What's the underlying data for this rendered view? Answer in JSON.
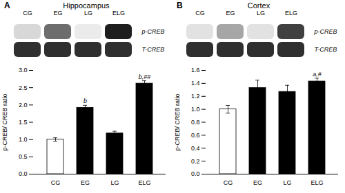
{
  "chart_data": [
    {
      "type": "bar",
      "panel_label": "A",
      "title": "Hippocampus",
      "categories": [
        "CG",
        "EG",
        "LG",
        "ELG"
      ],
      "values": [
        1.0,
        1.92,
        1.18,
        2.62
      ],
      "errors": [
        0.05,
        0.07,
        0.06,
        0.08
      ],
      "colors": [
        "white",
        "black",
        "black",
        "black"
      ],
      "annotations": [
        null,
        "b",
        null,
        "b,##"
      ],
      "ylabel": "p-CREB/ CREB ratio",
      "ylim": [
        0,
        3.0
      ],
      "yticks": [
        {
          "value": 0,
          "label": "0.0"
        },
        0.5,
        {
          "value": 1.0,
          "label": "1.0"
        },
        1.5,
        {
          "value": 2.0,
          "label": "2.0"
        },
        2.5,
        {
          "value": 3.0,
          "label": "3.0"
        }
      ],
      "blot_labels": [
        "p-CREB",
        "T-CREB"
      ],
      "blot_intensities": [
        [
          0.25,
          0.65,
          0.15,
          0.9
        ],
        [
          0.85,
          0.85,
          0.85,
          0.85
        ]
      ]
    },
    {
      "type": "bar",
      "panel_label": "B",
      "title": "Cortex",
      "categories": [
        "CG",
        "EG",
        "LG",
        "ELG"
      ],
      "values": [
        1.0,
        1.33,
        1.27,
        1.43
      ],
      "errors": [
        0.06,
        0.12,
        0.1,
        0.05
      ],
      "colors": [
        "white",
        "black",
        "black",
        "black"
      ],
      "annotations": [
        null,
        null,
        null,
        "a,#"
      ],
      "ylabel": "p-CREB/ CREB ratio",
      "ylim": [
        0,
        1.6
      ],
      "yticks": [
        {
          "value": 0,
          "label": "0.0"
        },
        0.2,
        0.4,
        0.6,
        0.8,
        {
          "value": 1.0,
          "label": "1.0"
        },
        1.2,
        1.4,
        1.6
      ],
      "blot_labels": [
        "p-CREB",
        "T-CREB"
      ],
      "blot_intensities": [
        [
          0.2,
          0.45,
          0.2,
          0.8
        ],
        [
          0.85,
          0.85,
          0.85,
          0.85
        ]
      ]
    }
  ]
}
